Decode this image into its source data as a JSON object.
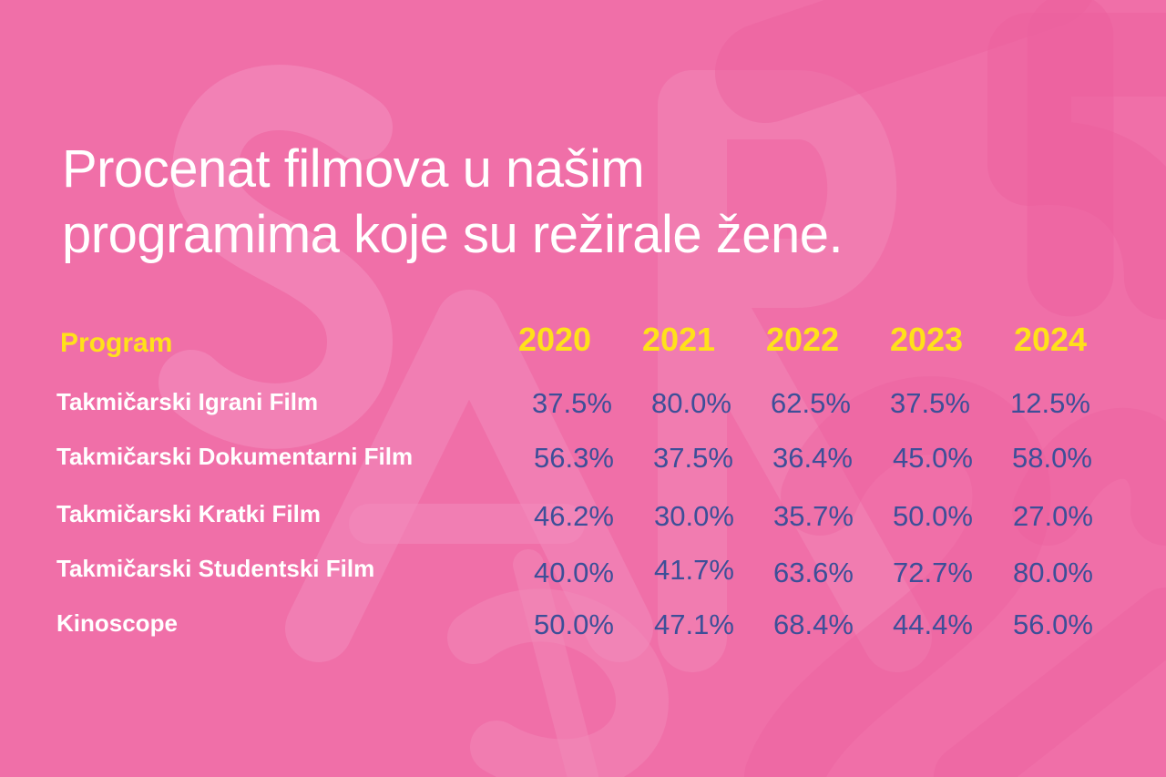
{
  "title_lines": [
    "Procenat filmova u našim",
    "programima koje su režirale žene."
  ],
  "colors": {
    "background": "#f06fa8",
    "title": "#ffffff",
    "header": "#ffe11a",
    "row_label": "#ffffff",
    "value": "#3d4f98"
  },
  "chart_data": {
    "type": "table",
    "row_header": "Program",
    "years": [
      "2020",
      "2021",
      "2022",
      "2023",
      "2024"
    ],
    "rows": [
      {
        "program": "Takmičarski Igrani Film",
        "values": [
          "37.5%",
          "80.0%",
          "62.5%",
          "37.5%",
          "12.5%"
        ]
      },
      {
        "program": "Takmičarski Dokumentarni Film",
        "values": [
          "56.3%",
          "37.5%",
          "36.4%",
          "45.0%",
          "58.0%"
        ]
      },
      {
        "program": "Takmičarski Kratki Film",
        "values": [
          "46.2%",
          "30.0%",
          "35.7%",
          "50.0%",
          "27.0%"
        ]
      },
      {
        "program": "Takmičarski Studentski Film",
        "values": [
          "40.0%",
          "41.7%",
          "63.6%",
          "72.7%",
          "80.0%"
        ]
      },
      {
        "program": "Kinoscope",
        "values": [
          "50.0%",
          "47.1%",
          "68.4%",
          "44.4%",
          "56.0%"
        ]
      }
    ]
  }
}
